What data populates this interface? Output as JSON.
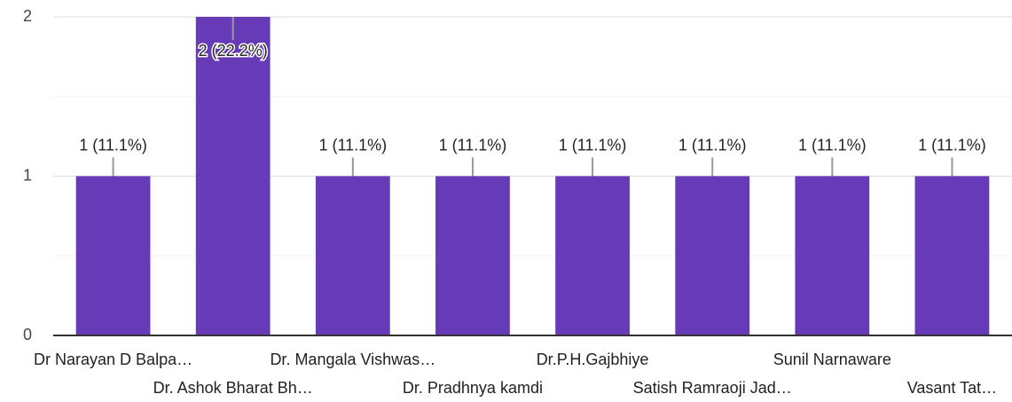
{
  "chart_data": {
    "type": "bar",
    "categories": [
      "Dr Narayan D Balpa…",
      "Dr. Ashok Bharat Bh…",
      "Dr. Mangala Vishwas…",
      "Dr. Pradhnya kamdi",
      "Dr.P.H.Gajbhiye",
      "Satish Ramraoji Jad…",
      "Sunil Narnaware",
      "Vasant Tat…"
    ],
    "values": [
      1,
      2,
      1,
      1,
      1,
      1,
      1,
      1
    ],
    "value_labels": [
      "1 (11.1%)",
      "2 (22.2%)",
      "1 (11.1%)",
      "1 (11.1%)",
      "1 (11.1%)",
      "1 (11.1%)",
      "1 (11.1%)",
      "1 (11.1%)"
    ],
    "color": "#673ab7",
    "ylim": [
      0,
      2
    ],
    "yticks": [
      0,
      1,
      2
    ],
    "minor_yticks": [
      0.5,
      1.5
    ],
    "grid": true
  }
}
